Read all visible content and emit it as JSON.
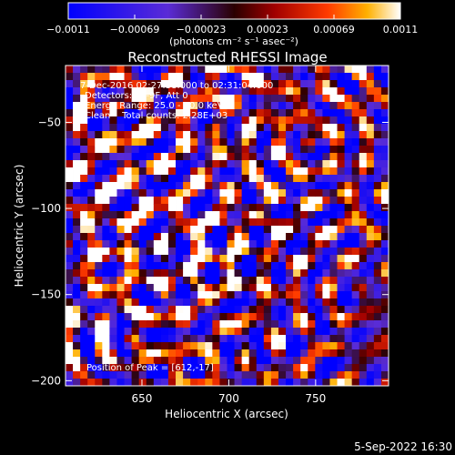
{
  "chart_data": {
    "type": "heatmap",
    "title": "Reconstructed RHESSI Image",
    "xlabel": "Heliocentric X (arcsec)",
    "ylabel": "Heliocentric Y (arcsec)",
    "xlim": [
      606,
      792
    ],
    "ylim": [
      -203,
      -17
    ],
    "x_ticks": [
      650,
      700,
      750
    ],
    "y_ticks": [
      -50,
      -100,
      -150,
      -200
    ],
    "x_tick_labels": [
      "650",
      "700",
      "750"
    ],
    "y_tick_labels": [
      "−50",
      "−100",
      "−150",
      "−200"
    ],
    "colorbar": {
      "min": -0.0011,
      "max": 0.0011,
      "tick_labels": [
        "−0.0011",
        "−0.00069",
        "−0.00023",
        "0.00023",
        "0.00069",
        "0.0011"
      ],
      "units_label": "(photons cm⁻² s⁻¹ asec⁻²)"
    },
    "annotations": {
      "time_range": "7-Dec-2016 02:27:38.000 to 02:31:04.000",
      "detectors": "Detectors: 3F-9F, Att 0",
      "energy": "Energy Range: 25.0 - 50.0 keV",
      "algorithm": "Clean    Total counts: 2.28E+03",
      "peak": "Position of Peak = [612,-17]"
    },
    "peak_position": [
      612,
      -17
    ],
    "pattern": "ring-like clean residual pattern, brightest toward upper-left, decreasing toward lower-right"
  },
  "footer": {
    "timestamp": "5-Sep-2022 16:30"
  }
}
